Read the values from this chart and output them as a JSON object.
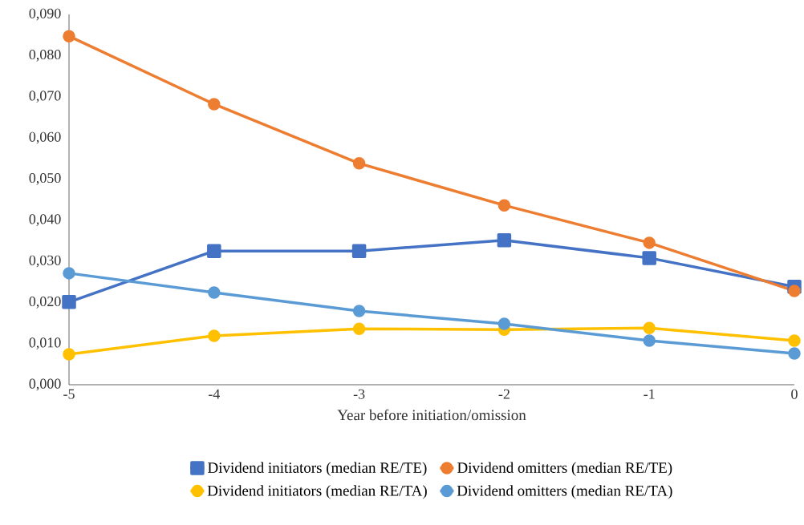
{
  "chart_data": {
    "type": "line",
    "xlabel": "Year before initiation/omission",
    "x": [
      -5,
      -4,
      -3,
      -2,
      -1,
      0
    ],
    "xlim": [
      -5,
      0
    ],
    "xticks": [
      -5,
      -4,
      -3,
      -2,
      -1,
      0
    ],
    "ylim": [
      0,
      0.09
    ],
    "yticks": [
      {
        "value": 0,
        "label": "0,000"
      },
      {
        "value": 0.01,
        "label": "0,010"
      },
      {
        "value": 0.02,
        "label": "0,020"
      },
      {
        "value": 0.03,
        "label": "0,030"
      },
      {
        "value": 0.04,
        "label": "0,040"
      },
      {
        "value": 0.05,
        "label": "0,050"
      },
      {
        "value": 0.06,
        "label": "0,060"
      },
      {
        "value": 0.07,
        "label": "0,070"
      },
      {
        "value": 0.08,
        "label": "0,080"
      },
      {
        "value": 0.09,
        "label": "0,090"
      }
    ],
    "grid": false,
    "legend": "bottom",
    "marker": "circle",
    "line_style": "solid",
    "series": [
      {
        "name": "Dividend initiators (median RE/TE)",
        "color": "#4472c4",
        "marker": "square",
        "values": [
          0.0201,
          0.0325,
          0.0325,
          0.0351,
          0.0308,
          0.0238
        ]
      },
      {
        "name": "Dividend omitters (median RE/TE)",
        "color": "#ed7d31",
        "values": [
          0.0847,
          0.0682,
          0.0538,
          0.0436,
          0.0345,
          0.0228
        ]
      },
      {
        "name": "Dividend initiators (median RE/TA)",
        "color": "#ffc000",
        "values": [
          0.0074,
          0.0119,
          0.0136,
          0.0134,
          0.0138,
          0.0107
        ]
      },
      {
        "name": "Dividend omitters (median RE/TA)",
        "color": "#5b9bd5",
        "values": [
          0.0271,
          0.0224,
          0.0179,
          0.0148,
          0.0107,
          0.0076
        ]
      }
    ]
  }
}
